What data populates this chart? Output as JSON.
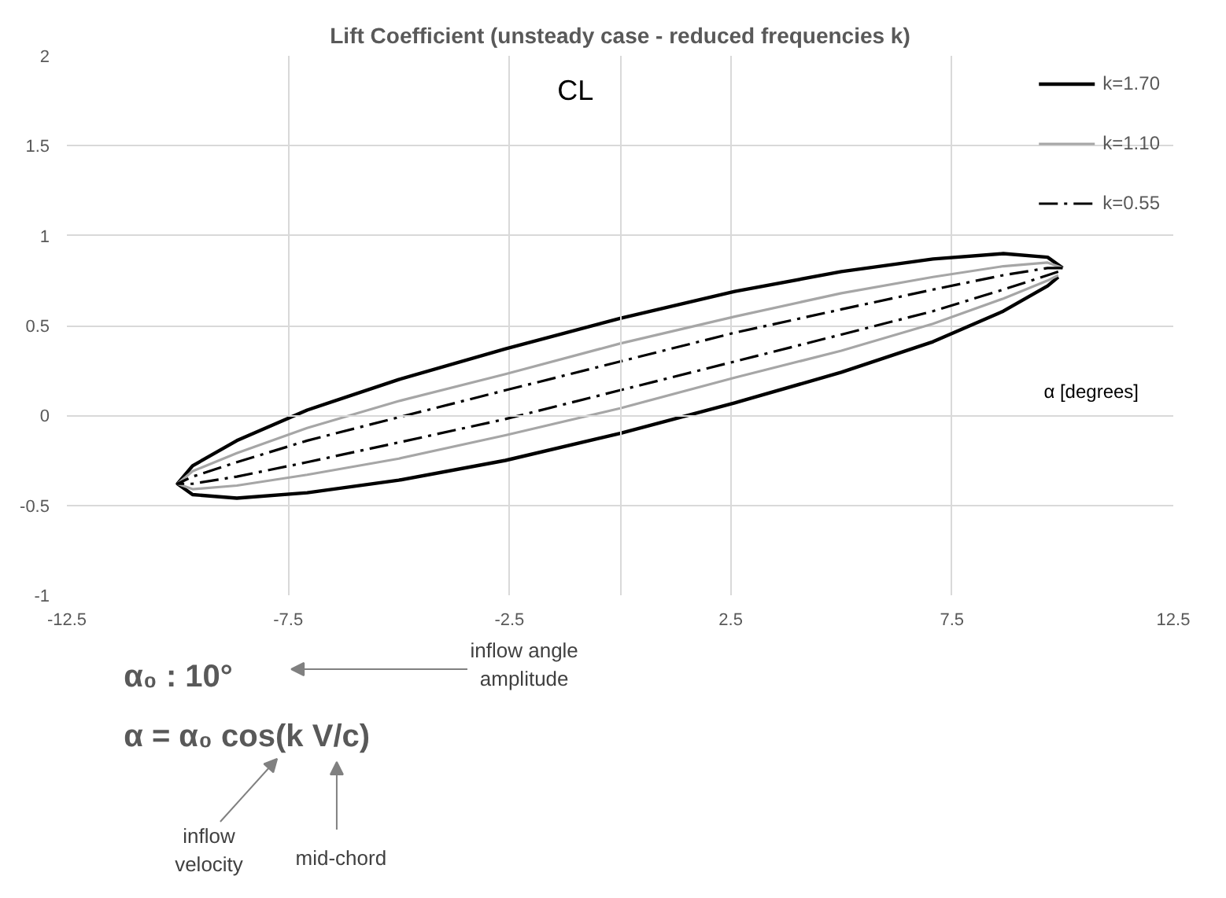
{
  "chart_data": {
    "type": "line",
    "title": "Lift Coefficient (unsteady case - reduced frequencies k)",
    "xlabel": "α [degrees]",
    "ylabel": "CL",
    "x": [
      10,
      9.66,
      8.66,
      7.07,
      5,
      2.59,
      0,
      -2.59,
      -5,
      -7.07,
      -8.66,
      -9.66,
      -10,
      -9.66,
      -8.66,
      -7.07,
      -5,
      -2.59,
      0,
      2.59,
      5,
      7.07,
      8.66,
      9.66,
      9.9
    ],
    "series": [
      {
        "name": "k=1.70",
        "color": "#000000",
        "line_style": "solid",
        "values": [
          0.82,
          0.88,
          0.9,
          0.87,
          0.8,
          0.69,
          0.54,
          0.37,
          0.2,
          0.03,
          -0.14,
          -0.28,
          -0.38,
          -0.44,
          -0.46,
          -0.43,
          -0.36,
          -0.25,
          -0.1,
          0.07,
          0.24,
          0.41,
          0.58,
          0.72,
          0.77
        ]
      },
      {
        "name": "k=1.10",
        "color": "#a6a6a6",
        "line_style": "solid",
        "values": [
          0.82,
          0.85,
          0.83,
          0.77,
          0.68,
          0.55,
          0.4,
          0.23,
          0.08,
          -0.07,
          -0.21,
          -0.31,
          -0.38,
          -0.41,
          -0.39,
          -0.33,
          -0.24,
          -0.11,
          0.04,
          0.21,
          0.36,
          0.51,
          0.65,
          0.75,
          0.78
        ]
      },
      {
        "name": "k=0.55",
        "color": "#000000",
        "line_style": "dashdot",
        "values": [
          0.82,
          0.82,
          0.78,
          0.7,
          0.59,
          0.46,
          0.3,
          0.14,
          -0.01,
          -0.14,
          -0.26,
          -0.34,
          -0.38,
          -0.38,
          -0.34,
          -0.26,
          -0.15,
          -0.02,
          0.14,
          0.3,
          0.45,
          0.58,
          0.7,
          0.78,
          0.8
        ]
      }
    ],
    "xlim": [
      -12.5,
      12.5
    ],
    "xticks": [
      -12.5,
      -7.5,
      -2.5,
      2.5,
      7.5,
      12.5
    ],
    "ylim": [
      -1,
      2
    ],
    "yticks": [
      -1,
      -0.5,
      0,
      0.5,
      1,
      1.5,
      2
    ],
    "grid": true,
    "legend": "top right",
    "marker": "none",
    "annotations": [
      "α₀ : 10°",
      "α = α₀ cos(k V/c)",
      "inflow angle\namplitude",
      "inflow\nvelocity",
      "mid-chord"
    ]
  }
}
